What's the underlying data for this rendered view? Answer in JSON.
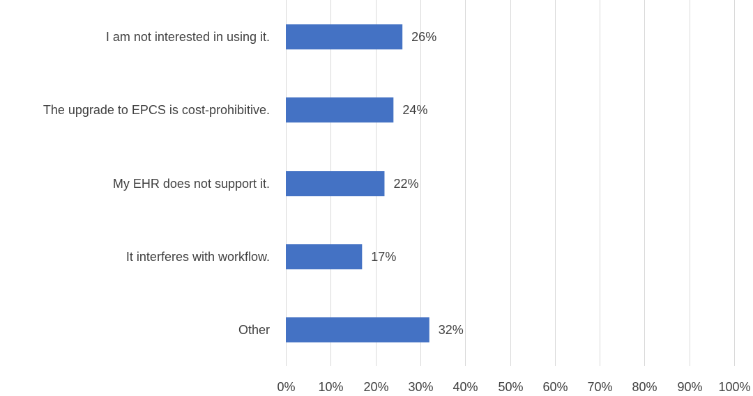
{
  "chart_data": {
    "type": "bar",
    "orientation": "horizontal",
    "categories": [
      "I am not interested in using it.",
      "The upgrade to EPCS is cost-prohibitive.",
      "My EHR does not support it.",
      "It interferes with workflow.",
      "Other"
    ],
    "values": [
      26,
      24,
      22,
      17,
      32
    ],
    "data_labels": [
      "26%",
      "24%",
      "22%",
      "17%",
      "32%"
    ],
    "xlim": [
      0,
      100
    ],
    "x_ticks": [
      "0%",
      "10%",
      "20%",
      "30%",
      "40%",
      "50%",
      "60%",
      "70%",
      "80%",
      "90%",
      "100%"
    ],
    "title": "",
    "xlabel": "",
    "ylabel": "",
    "grid": "vertical",
    "legend": "none",
    "bar_color": "#4472C4"
  }
}
